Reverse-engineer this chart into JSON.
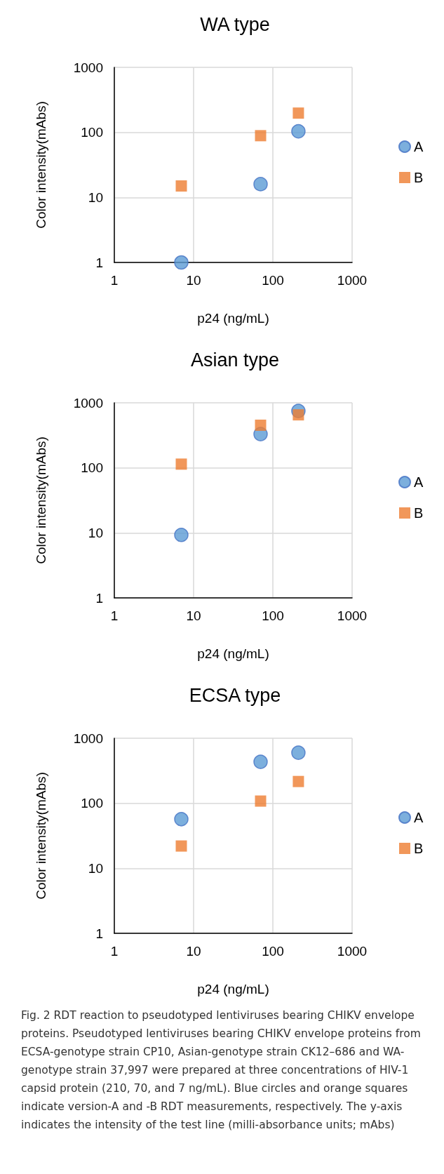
{
  "chart_data": [
    {
      "type": "scatter",
      "title": "WA type",
      "xlabel": "p24 (ng/mL)",
      "ylabel": "Color intensity(mAbs)",
      "log": "xy",
      "xlim": [
        1,
        1000
      ],
      "xticks": [
        1,
        10,
        100,
        1000
      ],
      "ylim": [
        1,
        1000
      ],
      "yticks": [
        1,
        10,
        100,
        1000
      ],
      "grid": true,
      "legend": "right",
      "series": [
        {
          "name": "A",
          "color": "#5b9bd5",
          "marker": "circle",
          "x": [
            7,
            70,
            210
          ],
          "values": [
            1.0,
            16,
            104
          ]
        },
        {
          "name": "B",
          "color": "#ed7d31",
          "marker": "square",
          "x": [
            7,
            70,
            210
          ],
          "values": [
            15,
            89,
            198
          ]
        }
      ]
    },
    {
      "type": "scatter",
      "title": "Asian type",
      "xlabel": "p24 (ng/mL)",
      "ylabel": "Color intensity(mAbs)",
      "log": "xy",
      "xlim": [
        1,
        1000
      ],
      "xticks": [
        1,
        10,
        100,
        1000
      ],
      "ylim": [
        1,
        1000
      ],
      "yticks": [
        1,
        10,
        100,
        1000
      ],
      "grid": true,
      "legend": "right",
      "series": [
        {
          "name": "A",
          "color": "#5b9bd5",
          "marker": "circle",
          "x": [
            7,
            70,
            210
          ],
          "values": [
            9.3,
            330,
            750
          ]
        },
        {
          "name": "B",
          "color": "#ed7d31",
          "marker": "square",
          "x": [
            7,
            70,
            210
          ],
          "values": [
            114,
            452,
            653
          ]
        }
      ]
    },
    {
      "type": "scatter",
      "title": "ECSA type",
      "xlabel": "p24 (ng/mL)",
      "ylabel": "Color intensity(mAbs)",
      "log": "xy",
      "xlim": [
        1,
        1000
      ],
      "xticks": [
        1,
        10,
        100,
        1000
      ],
      "ylim": [
        1,
        1000
      ],
      "yticks": [
        1,
        10,
        100,
        1000
      ],
      "grid": true,
      "legend": "right",
      "annotations": [
        "Fig. 2 RDT reaction to pseudotyped lentiviruses bearing CHIKV envelope proteins. Pseudotyped lentiviruses bearing CHIKV envelope proteins from ECSA-genotype strain CP10, Asian-genotype strain CK12–686 and WA-genotype strain 37,997 were prepared at three concentrations of HIV-1 capsid protein (210, 70, and 7 ng/mL). Blue circles and orange squares indicate version-A and -B RDT measurements, respectively. The y-axis indicates the intensity of the test line (milli-absorbance units; mAbs)"
      ],
      "series": [
        {
          "name": "A",
          "color": "#5b9bd5",
          "marker": "circle",
          "x": [
            7,
            70,
            210
          ],
          "values": [
            57,
            434,
            600
          ]
        },
        {
          "name": "B",
          "color": "#ed7d31",
          "marker": "square",
          "x": [
            7,
            70,
            210
          ],
          "values": [
            22,
            108,
            216
          ]
        }
      ]
    }
  ]
}
